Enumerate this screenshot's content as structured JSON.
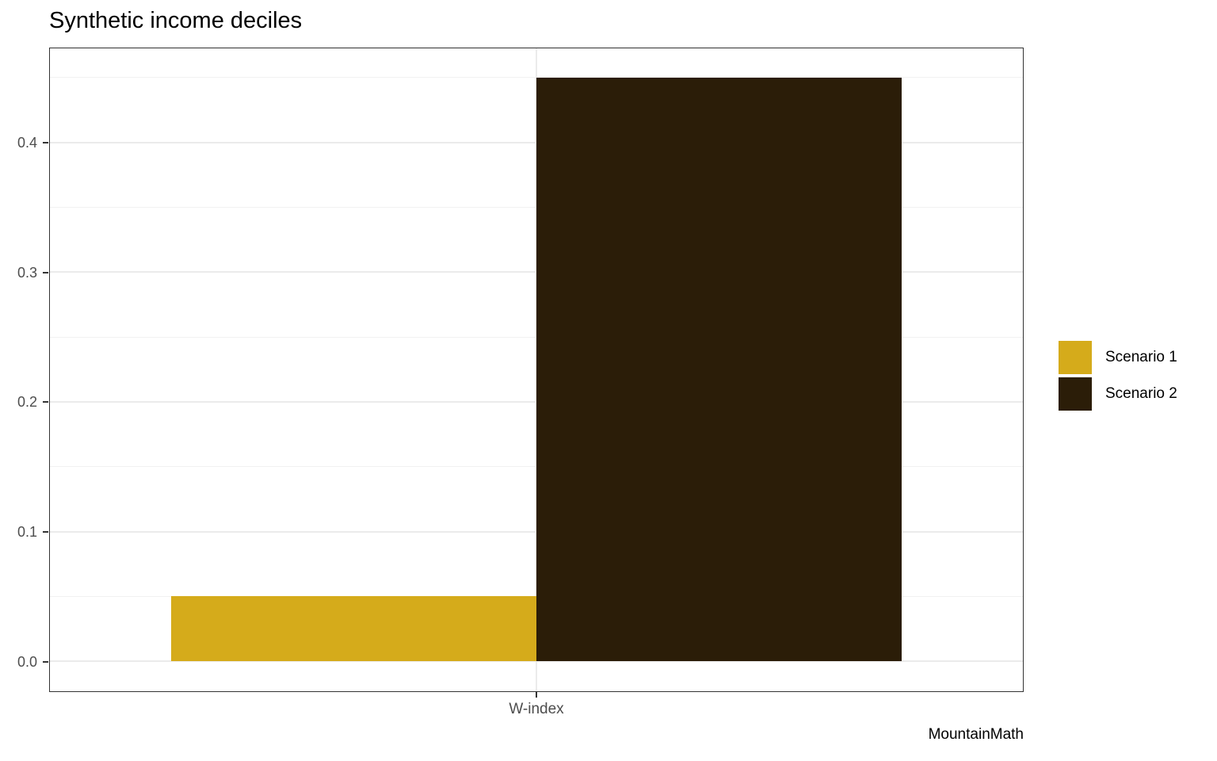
{
  "title": "Synthetic income deciles",
  "caption": "MountainMath",
  "chart_data": {
    "type": "bar",
    "title": "Synthetic income deciles",
    "caption": "MountainMath",
    "bar_layout": "dodge",
    "categories": [
      "W-index"
    ],
    "series": [
      {
        "name": "Scenario 1",
        "color": "#D5AB1B",
        "values": [
          0.05
        ]
      },
      {
        "name": "Scenario 2",
        "color": "#2B1D08",
        "values": [
          0.45
        ]
      }
    ],
    "xlabel": "",
    "ylabel": "",
    "ylim": [
      0,
      0.45
    ],
    "ylim_expanded": [
      -0.0225,
      0.4725
    ],
    "yticks": [
      0,
      0.1,
      0.2,
      0.3,
      0.4
    ],
    "ytick_labels": [
      "0.0",
      "0.1",
      "0.2",
      "0.3",
      "0.4"
    ],
    "yticks_minor": [
      0.05,
      0.15,
      0.25,
      0.35,
      0.45
    ],
    "grid": true,
    "legend_position": "right"
  },
  "colors": {
    "grid_major": "#EBEBEB",
    "grid_minor": "#F1F1F1",
    "panel_border": "#333333",
    "axis_text": "#4D4D4D",
    "tick_mark": "#333333"
  }
}
